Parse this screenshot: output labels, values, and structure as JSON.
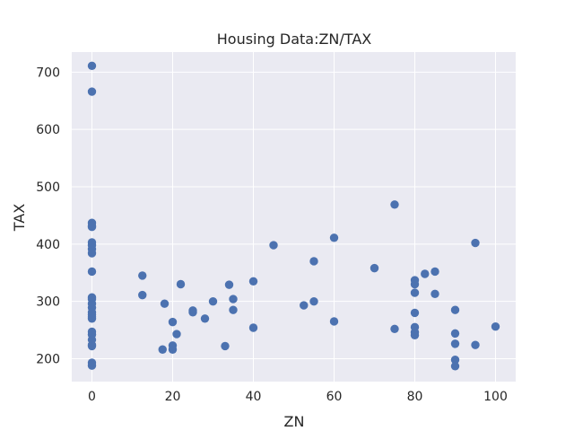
{
  "chart_data": {
    "type": "scatter",
    "title": "Housing Data:ZN/TAX",
    "xlabel": "ZN",
    "ylabel": "TAX",
    "xlim": [
      -5,
      105
    ],
    "ylim": [
      160,
      735
    ],
    "xticks": [
      0,
      20,
      40,
      60,
      80,
      100
    ],
    "yticks": [
      200,
      300,
      400,
      500,
      600,
      700
    ],
    "grid": true,
    "background": "#EAEAF2",
    "grid_color": "#FFFFFF",
    "marker_color": "#4C72B0",
    "points": [
      [
        0,
        711
      ],
      [
        0,
        666
      ],
      [
        0,
        437
      ],
      [
        0,
        432
      ],
      [
        0,
        430
      ],
      [
        0,
        403
      ],
      [
        0,
        398
      ],
      [
        0,
        391
      ],
      [
        0,
        384
      ],
      [
        0,
        352
      ],
      [
        0,
        307
      ],
      [
        0,
        304
      ],
      [
        0,
        296
      ],
      [
        0,
        289
      ],
      [
        0,
        281
      ],
      [
        0,
        277
      ],
      [
        0,
        273
      ],
      [
        0,
        270
      ],
      [
        0,
        247
      ],
      [
        0,
        242
      ],
      [
        0,
        233
      ],
      [
        0,
        224
      ],
      [
        0,
        222
      ],
      [
        0,
        193
      ],
      [
        0,
        188
      ],
      [
        12.5,
        345
      ],
      [
        12.5,
        311
      ],
      [
        17.5,
        216
      ],
      [
        18,
        296
      ],
      [
        20,
        264
      ],
      [
        20,
        223
      ],
      [
        20,
        216
      ],
      [
        21,
        243
      ],
      [
        22,
        330
      ],
      [
        25,
        284
      ],
      [
        25,
        281
      ],
      [
        28,
        270
      ],
      [
        30,
        300
      ],
      [
        33,
        222
      ],
      [
        34,
        329
      ],
      [
        35,
        304
      ],
      [
        35,
        285
      ],
      [
        40,
        335
      ],
      [
        40,
        254
      ],
      [
        45,
        398
      ],
      [
        52.5,
        293
      ],
      [
        55,
        370
      ],
      [
        55,
        300
      ],
      [
        60,
        411
      ],
      [
        60,
        265
      ],
      [
        70,
        358
      ],
      [
        75,
        469
      ],
      [
        75,
        252
      ],
      [
        80,
        337
      ],
      [
        80,
        330
      ],
      [
        80,
        315
      ],
      [
        80,
        280
      ],
      [
        80,
        255
      ],
      [
        80,
        246
      ],
      [
        80,
        241
      ],
      [
        82.5,
        348
      ],
      [
        85,
        352
      ],
      [
        85,
        313
      ],
      [
        90,
        285
      ],
      [
        90,
        244
      ],
      [
        90,
        226
      ],
      [
        90,
        198
      ],
      [
        90,
        187
      ],
      [
        95,
        402
      ],
      [
        95,
        224
      ],
      [
        100,
        256
      ]
    ]
  }
}
